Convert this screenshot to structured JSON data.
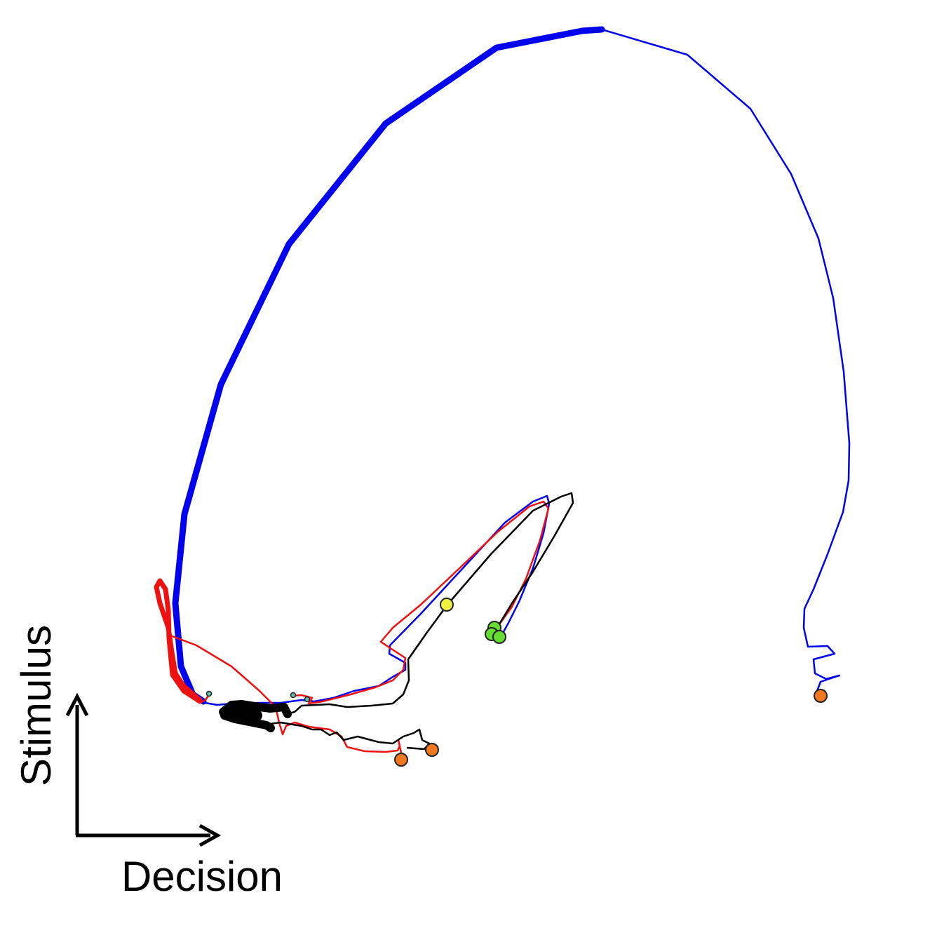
{
  "axes": {
    "x_label": "Decision",
    "y_label": "Stimulus"
  },
  "colors": {
    "blue": "#0000ee",
    "red": "#ee1111",
    "black": "#000000",
    "marker_orange": "#f07820",
    "marker_green": "#66dd33",
    "marker_yellow": "#f0f040",
    "marker_teal": "#66bbaa"
  },
  "trajectories": [
    {
      "name": "blue",
      "color_key": "blue"
    },
    {
      "name": "red",
      "color_key": "red"
    },
    {
      "name": "black",
      "color_key": "black"
    }
  ],
  "markers": [
    {
      "kind": "end",
      "color_key": "marker_orange"
    },
    {
      "kind": "end",
      "color_key": "marker_orange"
    },
    {
      "kind": "end",
      "color_key": "marker_orange"
    },
    {
      "kind": "intermediate",
      "color_key": "marker_green"
    },
    {
      "kind": "intermediate",
      "color_key": "marker_green"
    },
    {
      "kind": "intermediate",
      "color_key": "marker_green"
    },
    {
      "kind": "intermediate",
      "color_key": "marker_yellow"
    },
    {
      "kind": "start",
      "color_key": "marker_teal"
    },
    {
      "kind": "start",
      "color_key": "marker_teal"
    },
    {
      "kind": "start",
      "color_key": "marker_teal"
    }
  ]
}
